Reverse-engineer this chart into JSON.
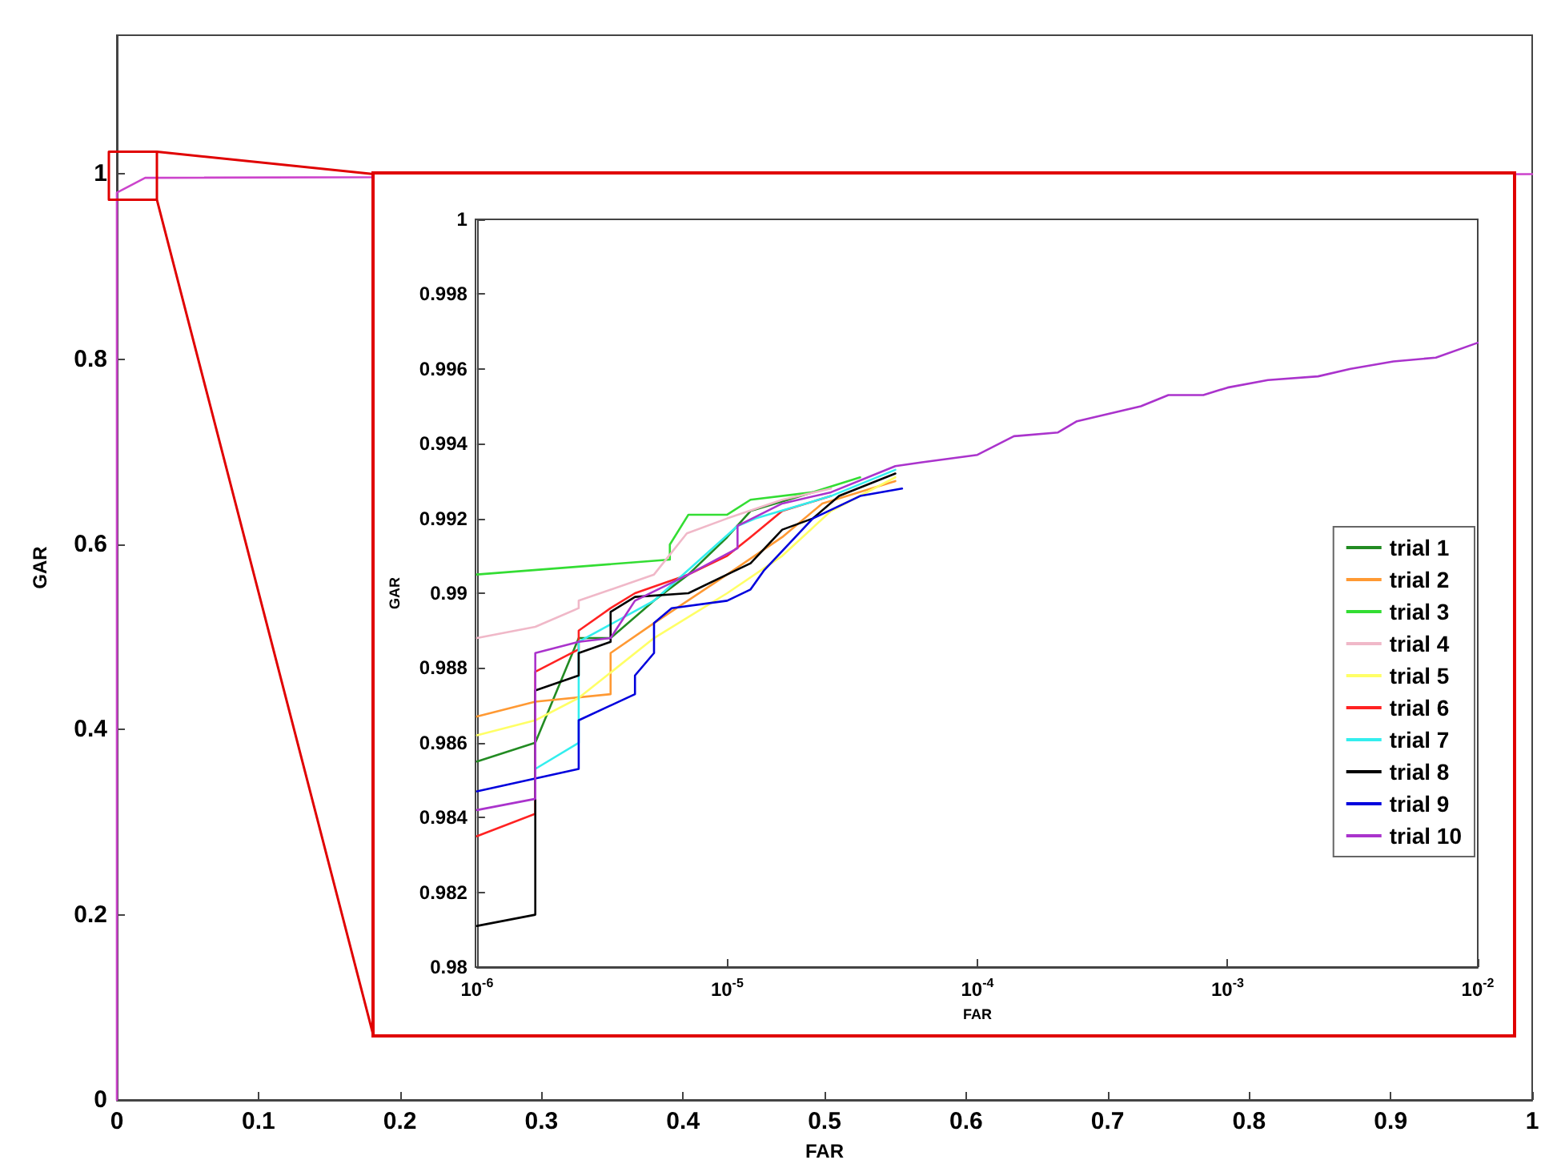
{
  "chart_data": [
    {
      "type": "line",
      "xlabel": "FAR",
      "ylabel": "GAR",
      "xlim": [
        0,
        1
      ],
      "ylim": [
        0,
        1.15
      ],
      "xticks": [
        0,
        0.1,
        0.2,
        0.3,
        0.4,
        0.5,
        0.6,
        0.7,
        0.8,
        0.9,
        1
      ],
      "yticks": [
        0,
        0.2,
        0.4,
        0.6,
        0.8,
        1
      ],
      "grid": false,
      "legend": false,
      "marker": "none",
      "series": [
        {
          "color": "#cc44cc",
          "x": [
            0,
            0,
            0.02,
            1
          ],
          "values": [
            0,
            0.98,
            0.996,
            1
          ]
        }
      ]
    },
    {
      "type": "line",
      "xlabel": "FAR",
      "ylabel": "GAR",
      "log": "x",
      "xlim": [
        1e-06,
        0.01
      ],
      "ylim": [
        0.98,
        1
      ],
      "xticks": [
        {
          "value": 1e-06,
          "label": "10$^{-6}$"
        },
        {
          "value": 1e-05,
          "label": "10$^{-5}$"
        },
        {
          "value": 0.0001,
          "label": "10$^{-4}$"
        },
        {
          "value": 0.001,
          "label": "10$^{-3}$"
        },
        {
          "value": 0.01,
          "label": "10$^{-2}$"
        }
      ],
      "yticks": [
        0.98,
        0.982,
        0.984,
        0.986,
        0.988,
        0.99,
        0.992,
        0.994,
        0.996,
        0.998,
        1
      ],
      "grid": false,
      "legend": "right",
      "marker": "none",
      "series": [
        {
          "name": "trial 1",
          "color": "#228b22",
          "x": [
            1e-06,
            1.71e-06,
            2.55e-06,
            3.42e-06,
            5.1e-06,
            7e-06,
            1e-05,
            1.24e-05,
            2.2e-05
          ],
          "values": [
            0.9855,
            0.986,
            0.9888,
            0.9888,
            0.9898,
            0.9905,
            0.9915,
            0.9922,
            0.9927
          ]
        },
        {
          "name": "trial 2",
          "color": "#ff9933",
          "x": [
            1e-06,
            1.71e-06,
            3.42e-06,
            3.42e-06,
            5.1e-06,
            1e-05,
            1.66e-05,
            2.4e-05,
            4.7e-05
          ],
          "values": [
            0.9867,
            0.9871,
            0.9873,
            0.9884,
            0.9892,
            0.9905,
            0.9915,
            0.9924,
            0.993
          ]
        },
        {
          "name": "trial 3",
          "color": "#33dd33",
          "x": [
            1e-06,
            5.9e-06,
            5.9e-06,
            7e-06,
            1e-05,
            1.24e-05,
            2.2e-05,
            3.4e-05
          ],
          "values": [
            0.9905,
            0.9909,
            0.9913,
            0.9921,
            0.9921,
            0.9925,
            0.9927,
            0.9931
          ]
        },
        {
          "name": "trial 4",
          "color": "#f0b8c8",
          "x": [
            1e-06,
            1.71e-06,
            2.55e-06,
            2.55e-06,
            5.1e-06,
            6.9e-06,
            1e-05,
            1.66e-05,
            2.6e-05
          ],
          "values": [
            0.9888,
            0.9891,
            0.9896,
            0.9898,
            0.9905,
            0.9916,
            0.992,
            0.9925,
            0.9928
          ]
        },
        {
          "name": "trial 5",
          "color": "#ffff66",
          "x": [
            1e-06,
            1.71e-06,
            2.55e-06,
            5.1e-06,
            1e-05,
            1.66e-05,
            2.6e-05,
            4.7e-05
          ],
          "values": [
            0.9862,
            0.9866,
            0.9872,
            0.9888,
            0.99,
            0.991,
            0.9922,
            0.9931
          ]
        },
        {
          "name": "trial 6",
          "color": "#ff2222",
          "x": [
            1e-06,
            1.71e-06,
            1.71e-06,
            2.55e-06,
            2.55e-06,
            3.42e-06,
            4.28e-06,
            7e-06,
            1e-05,
            1.24e-05,
            1.66e-05,
            2.6e-05
          ],
          "values": [
            0.9835,
            0.9841,
            0.9879,
            0.9885,
            0.989,
            0.9896,
            0.99,
            0.9905,
            0.991,
            0.9915,
            0.9922,
            0.9926
          ]
        },
        {
          "name": "trial 7",
          "color": "#33eeee",
          "x": [
            1.71e-06,
            2.55e-06,
            2.55e-06,
            5.1e-06,
            1.1e-05,
            1.3e-05,
            2.6e-05,
            4.7e-05
          ],
          "values": [
            0.9853,
            0.986,
            0.9887,
            0.9898,
            0.9918,
            0.992,
            0.9926,
            0.9933
          ]
        },
        {
          "name": "trial 8",
          "color": "#000000",
          "x": [
            1e-06,
            1.71e-06,
            1.71e-06,
            2.55e-06,
            2.55e-06,
            3.42e-06,
            3.42e-06,
            4.28e-06,
            7e-06,
            1e-05,
            1.24e-05,
            1.66e-05,
            2.2e-05,
            2.8e-05,
            4.7e-05
          ],
          "values": [
            0.9811,
            0.9814,
            0.9874,
            0.9878,
            0.9884,
            0.9887,
            0.9895,
            0.9899,
            0.99,
            0.9905,
            0.9908,
            0.9917,
            0.992,
            0.9926,
            0.9932
          ]
        },
        {
          "name": "trial 9",
          "color": "#0000dd",
          "x": [
            1e-06,
            2.55e-06,
            2.55e-06,
            4.28e-06,
            4.28e-06,
            5.1e-06,
            5.1e-06,
            6e-06,
            1e-05,
            1.24e-05,
            1.4e-05,
            2.2e-05,
            3.4e-05,
            5e-05
          ],
          "values": [
            0.9847,
            0.9853,
            0.9866,
            0.9873,
            0.9878,
            0.9884,
            0.9892,
            0.9896,
            0.9898,
            0.9901,
            0.9906,
            0.992,
            0.9926,
            0.9928
          ]
        },
        {
          "name": "trial 10",
          "color": "#aa33cc",
          "x": [
            1e-06,
            1.71e-06,
            1.71e-06,
            2.55e-06,
            3.42e-06,
            4.28e-06,
            7e-06,
            1.1e-05,
            1.1e-05,
            1.66e-05,
            2.6e-05,
            4.7e-05,
            6e-05,
            0.0001,
            0.00014,
            0.00021,
            0.00025,
            0.00045,
            0.00058,
            0.0008,
            0.001,
            0.00145,
            0.0023,
            0.0031,
            0.0046,
            0.0068,
            0.01
          ],
          "values": [
            0.9842,
            0.9845,
            0.9884,
            0.9887,
            0.9888,
            0.9898,
            0.9905,
            0.9912,
            0.9918,
            0.9924,
            0.9927,
            0.9934,
            0.9935,
            0.9937,
            0.9942,
            0.9943,
            0.9946,
            0.995,
            0.9953,
            0.9953,
            0.9955,
            0.9957,
            0.9958,
            0.996,
            0.9962,
            0.9963,
            0.9967
          ]
        }
      ]
    }
  ]
}
